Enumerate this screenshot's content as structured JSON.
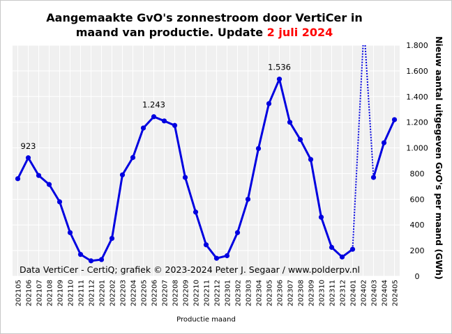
{
  "title": {
    "line1": "Aangemaakte GvO's zonnestroom door VertiCer in",
    "line2": "maand van productie. Update ",
    "update_date": "2 juli  2024"
  },
  "chart_data": {
    "type": "line",
    "xlabel": "Productie maand",
    "ylabel": "Nieuw aantal uitgegeven GvO's per maand (GWh)",
    "ylim": [
      0,
      1800
    ],
    "yticks": [
      0,
      200,
      400,
      600,
      800,
      1000,
      1200,
      1400,
      1600,
      1800
    ],
    "ytick_labels": [
      "0",
      "200",
      "400",
      "600",
      "800",
      "1.000",
      "1.200",
      "1.400",
      "1.600",
      "1.800"
    ],
    "y_axis_side": "right",
    "grid": true,
    "categories": [
      "202105",
      "202106",
      "202107",
      "202108",
      "202109",
      "202110",
      "202111",
      "202112",
      "202201",
      "202202",
      "202203",
      "202204",
      "202205",
      "202206",
      "202207",
      "202208",
      "202209",
      "202210",
      "202211",
      "202212",
      "202301",
      "202302",
      "202303",
      "202304",
      "202305",
      "202306",
      "202307",
      "202308",
      "202309",
      "202310",
      "202311",
      "202312",
      "202401",
      "202402",
      "202403",
      "202404",
      "202405"
    ],
    "series": [
      {
        "style": "solid",
        "color": "#0000e0",
        "values": [
          760,
          923,
          785,
          715,
          580,
          340,
          170,
          120,
          130,
          295,
          790,
          925,
          1155,
          1243,
          1210,
          1175,
          770,
          500,
          245,
          140,
          160,
          340,
          600,
          995,
          1345,
          1536,
          1200,
          1065,
          910,
          460,
          225,
          150,
          210,
          null,
          770,
          1040,
          1220
        ]
      }
    ],
    "outlier_segment": {
      "style": "dotted",
      "color": "#0000e0",
      "from": {
        "x": "202401",
        "y": 210
      },
      "to": {
        "x": "202403",
        "y": 770
      },
      "peak_category": "202402",
      "peak_note": "202402 off scale (above 1.800)"
    },
    "annotations": [
      {
        "x": "202106",
        "y": 923,
        "text": "923"
      },
      {
        "x": "202206",
        "y": 1243,
        "text": "1.243"
      },
      {
        "x": "202306",
        "y": 1536,
        "text": "1.536"
      }
    ],
    "source_note": "Data VertiCer - CertiQ; grafiek © 2023-2024  Peter J. Segaar / www.polderpv.nl"
  }
}
